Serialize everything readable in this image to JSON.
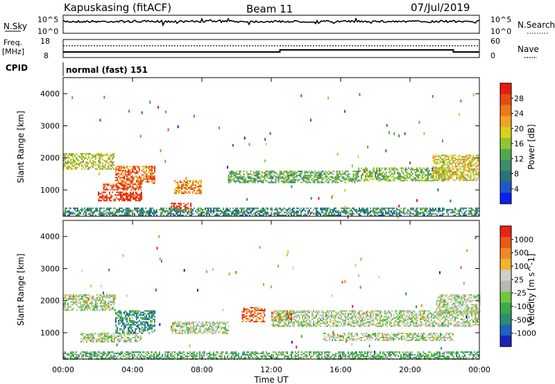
{
  "header": {
    "station": "Kapuskasing (fitACF)",
    "beam": "Beam 11",
    "date": "07/Jul/2019"
  },
  "noise_panel": {
    "left_label": "N.Sky",
    "right_label": "N.Search",
    "left_ticks": [
      "10^5",
      "10^0"
    ],
    "right_ticks": [
      "10^5",
      "10^0"
    ]
  },
  "freq_panel": {
    "left_label_1": "Freq.",
    "left_label_2": "[MHz]",
    "right_label": "Nave",
    "left_ticks": [
      "18",
      "8"
    ],
    "right_ticks": [
      "60",
      "0"
    ]
  },
  "cpid": {
    "label": "CPID",
    "value": "normal (fast) 151"
  },
  "colors": {
    "power_scale": [
      "#0a1ff0",
      "#1d58c8",
      "#2c6f7c",
      "#3e8d6a",
      "#52a94a",
      "#91c434",
      "#d8d21f",
      "#f0a520",
      "#f07818",
      "#e64c12",
      "#e81c0c"
    ],
    "velocity_scale": [
      "#1b22b8",
      "#1e62c0",
      "#2c8f6c",
      "#3ba84a",
      "#6ec93c",
      "#b8b8b0",
      "#cfcfc8",
      "#f0b430",
      "#f08a20",
      "#e85a14",
      "#e82418"
    ]
  },
  "chart_data": [
    {
      "type": "heatmap",
      "name": "power",
      "ylabel": "Slant Range [km]",
      "colorbar_label": "Power [dB]",
      "colorbar_ticks": [
        "28",
        "24",
        "20",
        "16",
        "12",
        "8",
        "4"
      ],
      "ylim": [
        180,
        4500
      ],
      "yticks": [
        "4000",
        "3000",
        "2000",
        "1000"
      ],
      "x_hours": [
        0,
        24
      ],
      "regions": [
        {
          "t0": 0.0,
          "t1": 2.9,
          "r0": 1650,
          "r1": 2150,
          "level": 0.55
        },
        {
          "t0": 2.0,
          "t1": 4.5,
          "r0": 650,
          "r1": 950,
          "level": 0.95
        },
        {
          "t0": 2.3,
          "t1": 4.5,
          "r0": 1000,
          "r1": 1200,
          "level": 0.9
        },
        {
          "t0": 3.0,
          "t1": 5.3,
          "r0": 1200,
          "r1": 1750,
          "level": 0.8
        },
        {
          "t0": 6.2,
          "t1": 7.4,
          "r0": 300,
          "r1": 600,
          "level": 0.95
        },
        {
          "t0": 6.4,
          "t1": 8.0,
          "r0": 900,
          "r1": 1300,
          "level": 0.75
        },
        {
          "t0": 9.5,
          "t1": 17.0,
          "r0": 1250,
          "r1": 1600,
          "level": 0.4
        },
        {
          "t0": 17.0,
          "t1": 22.0,
          "r0": 1300,
          "r1": 1700,
          "level": 0.45
        },
        {
          "t0": 21.3,
          "t1": 24.0,
          "r0": 1300,
          "r1": 2100,
          "level": 0.6
        },
        {
          "t0": 0.0,
          "t1": 24.0,
          "r0": 200,
          "r1": 450,
          "level": 0.3
        }
      ],
      "title": ""
    },
    {
      "type": "heatmap",
      "name": "velocity",
      "xlabel": "Time UT",
      "ylabel": "Slant Range [km]",
      "colorbar_label": "Velocity [m s^-1]",
      "colorbar_ticks": [
        "1000",
        "500",
        "100",
        "25",
        "-25",
        "-100",
        "-500",
        "-1000"
      ],
      "ylim": [
        180,
        4500
      ],
      "yticks": [
        "4000",
        "3000",
        "2000",
        "1000"
      ],
      "xticks": [
        "00:00",
        "04:00",
        "08:00",
        "12:00",
        "16:00",
        "20:00",
        "00:00"
      ],
      "x_hours": [
        0,
        24
      ],
      "regions": [
        {
          "t0": 0.0,
          "t1": 3.0,
          "r0": 1700,
          "r1": 2200,
          "level": 0.5
        },
        {
          "t0": 1.0,
          "t1": 4.5,
          "r0": 700,
          "r1": 1000,
          "level": 0.5
        },
        {
          "t0": 3.0,
          "t1": 5.3,
          "r0": 1000,
          "r1": 1700,
          "level": 0.25
        },
        {
          "t0": 6.2,
          "t1": 9.5,
          "r0": 1000,
          "r1": 1350,
          "level": 0.5
        },
        {
          "t0": 10.3,
          "t1": 11.6,
          "r0": 1350,
          "r1": 1800,
          "level": 0.85
        },
        {
          "t0": 12.0,
          "t1": 13.2,
          "r0": 1400,
          "r1": 1700,
          "level": 0.85
        },
        {
          "t0": 12.0,
          "t1": 24.0,
          "r0": 1200,
          "r1": 1700,
          "level": 0.5
        },
        {
          "t0": 15.0,
          "t1": 22.5,
          "r0": 750,
          "r1": 1000,
          "level": 0.5
        },
        {
          "t0": 21.5,
          "t1": 24.0,
          "r0": 1600,
          "r1": 2200,
          "level": 0.5
        },
        {
          "t0": 0.0,
          "t1": 24.0,
          "r0": 200,
          "r1": 420,
          "level": 0.35
        }
      ],
      "title": ""
    }
  ]
}
